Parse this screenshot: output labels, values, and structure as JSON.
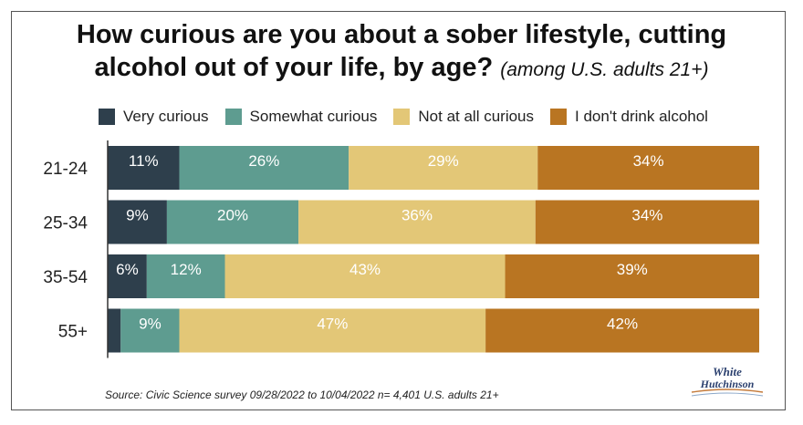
{
  "title": {
    "main": "How curious are you about a sober lifestyle, cutting alcohol out of your life, by age?",
    "sub": "(among U.S. adults 21+)"
  },
  "source": "Source: Civic Science survey 09/28/2022 to 10/04/2022 n= 4,401 U.S. adults 21+",
  "logo": {
    "word1": "White",
    "word2": "Hutchinson"
  },
  "chart_data": {
    "type": "bar",
    "orientation": "horizontal",
    "stacked": true,
    "categories": [
      "21-24",
      "25-34",
      "35-54",
      "55+"
    ],
    "series": [
      {
        "name": "Very curious",
        "values": [
          11,
          9,
          6,
          2
        ],
        "labels": [
          "11%",
          "9%",
          "6%",
          ""
        ],
        "color": "#2e3f4c"
      },
      {
        "name": "Somewhat curious",
        "values": [
          26,
          20,
          12,
          9
        ],
        "labels": [
          "26%",
          "20%",
          "12%",
          "9%"
        ],
        "color": "#5e9c90"
      },
      {
        "name": "Not at all curious",
        "values": [
          29,
          36,
          43,
          47
        ],
        "labels": [
          "29%",
          "36%",
          "43%",
          "47%"
        ],
        "color": "#e3c777"
      },
      {
        "name": "I don't drink alcohol",
        "values": [
          34,
          34,
          39,
          42
        ],
        "labels": [
          "34%",
          "34%",
          "39%",
          "42%"
        ],
        "color": "#b97522"
      }
    ],
    "xlim": [
      0,
      100
    ],
    "legend_position": "top",
    "grid": false
  }
}
